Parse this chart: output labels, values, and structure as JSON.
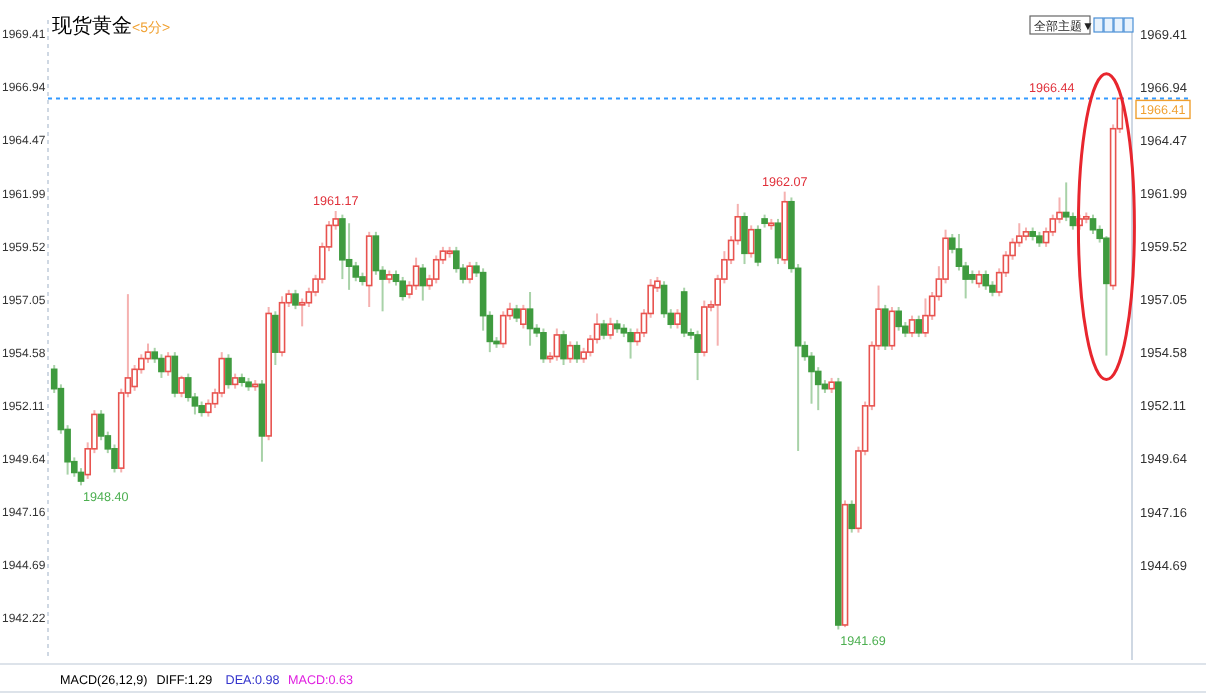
{
  "chart_data": {
    "type": "candlestick",
    "title": "现货黄金",
    "subtitle": "<5分>",
    "categories": [
      null,
      null,
      null,
      null,
      null,
      null,
      null,
      null,
      null,
      null,
      null,
      null,
      null,
      null,
      null,
      null,
      null,
      null,
      null,
      null,
      null,
      null,
      null,
      null,
      null,
      null,
      null,
      null,
      null,
      null,
      null,
      null,
      null,
      null,
      null,
      null,
      null,
      null,
      null,
      null,
      null,
      null,
      null,
      null,
      null,
      null,
      null,
      null,
      null,
      null,
      null,
      null,
      null,
      null,
      null,
      null,
      null,
      null,
      null,
      null,
      null,
      null,
      null,
      null,
      null,
      null,
      null,
      null,
      null,
      null,
      null,
      null,
      null,
      null,
      null,
      null,
      null,
      null,
      null,
      null,
      null,
      null,
      null,
      null,
      null,
      null,
      null,
      null,
      null,
      null,
      null,
      null,
      null,
      null,
      null,
      null,
      null,
      null,
      null,
      null,
      null,
      null,
      null,
      null,
      null,
      null,
      null,
      null,
      null,
      null,
      null,
      null,
      null,
      null,
      null,
      null,
      null,
      null,
      null,
      null,
      null,
      null,
      null,
      null,
      null,
      null,
      null,
      null,
      null,
      null,
      null,
      null,
      null,
      null,
      null,
      null,
      null,
      null,
      null,
      null,
      null,
      null,
      null,
      null,
      null,
      null,
      null,
      null,
      null,
      null,
      null,
      null,
      null,
      null,
      null,
      null,
      null,
      null,
      null,
      null
    ],
    "ohlc": [
      [
        1953.8,
        1954.0,
        1952.7,
        1952.9
      ],
      [
        1952.9,
        1953.1,
        1950.8,
        1951.0
      ],
      [
        1951.0,
        1951.2,
        1948.9,
        1949.5
      ],
      [
        1949.5,
        1949.7,
        1948.8,
        1949.0
      ],
      [
        1949.0,
        1949.2,
        1948.4,
        1948.6
      ],
      [
        1948.9,
        1950.4,
        1948.7,
        1950.1
      ],
      [
        1950.1,
        1951.9,
        1949.9,
        1951.7
      ],
      [
        1951.7,
        1951.9,
        1950.5,
        1950.7
      ],
      [
        1950.7,
        1950.9,
        1949.9,
        1950.1
      ],
      [
        1950.1,
        1950.3,
        1949.0,
        1949.2
      ],
      [
        1949.2,
        1952.9,
        1949.0,
        1952.7
      ],
      [
        1952.7,
        1957.3,
        1952.5,
        1953.4
      ],
      [
        1953.0,
        1954.0,
        1952.8,
        1953.8
      ],
      [
        1953.8,
        1954.5,
        1953.6,
        1954.3
      ],
      [
        1954.3,
        1955.0,
        1954.1,
        1954.6
      ],
      [
        1954.6,
        1954.8,
        1954.1,
        1954.3
      ],
      [
        1954.3,
        1954.5,
        1953.4,
        1953.7
      ],
      [
        1953.7,
        1954.6,
        1953.5,
        1954.4
      ],
      [
        1954.4,
        1954.6,
        1952.5,
        1952.7
      ],
      [
        1952.7,
        1953.5,
        1952.5,
        1953.4
      ],
      [
        1953.4,
        1953.6,
        1952.3,
        1952.5
      ],
      [
        1952.5,
        1952.7,
        1951.7,
        1952.1
      ],
      [
        1952.1,
        1952.3,
        1951.6,
        1951.8
      ],
      [
        1951.8,
        1952.4,
        1951.6,
        1952.2
      ],
      [
        1952.2,
        1952.9,
        1952.0,
        1952.7
      ],
      [
        1952.7,
        1954.6,
        1952.5,
        1954.3
      ],
      [
        1954.3,
        1954.5,
        1952.9,
        1953.1
      ],
      [
        1953.1,
        1953.6,
        1952.9,
        1953.4
      ],
      [
        1953.4,
        1953.6,
        1953.0,
        1953.2
      ],
      [
        1953.2,
        1953.4,
        1952.8,
        1953.0
      ],
      [
        1953.0,
        1953.3,
        1952.8,
        1953.1
      ],
      [
        1953.1,
        1953.3,
        1949.5,
        1950.7
      ],
      [
        1950.7,
        1956.7,
        1950.5,
        1956.4
      ],
      [
        1956.3,
        1956.5,
        1954.0,
        1954.6
      ],
      [
        1954.6,
        1957.2,
        1954.4,
        1956.9
      ],
      [
        1956.9,
        1957.5,
        1956.7,
        1957.3
      ],
      [
        1957.3,
        1957.5,
        1956.6,
        1956.8
      ],
      [
        1956.8,
        1957.1,
        1955.8,
        1956.9
      ],
      [
        1956.9,
        1957.6,
        1956.7,
        1957.4
      ],
      [
        1957.4,
        1958.2,
        1957.2,
        1958.0
      ],
      [
        1958.0,
        1959.7,
        1957.8,
        1959.5
      ],
      [
        1959.5,
        1960.7,
        1959.3,
        1960.5
      ],
      [
        1960.5,
        1961.17,
        1960.3,
        1960.8
      ],
      [
        1960.8,
        1961.0,
        1958.0,
        1958.9
      ],
      [
        1958.9,
        1960.6,
        1957.5,
        1958.6
      ],
      [
        1958.6,
        1958.8,
        1957.9,
        1958.1
      ],
      [
        1958.1,
        1958.3,
        1957.7,
        1957.9
      ],
      [
        1957.7,
        1960.2,
        1956.7,
        1960.0
      ],
      [
        1960.0,
        1960.2,
        1958.2,
        1958.4
      ],
      [
        1958.4,
        1958.6,
        1956.5,
        1958.0
      ],
      [
        1958.0,
        1958.4,
        1957.8,
        1958.2
      ],
      [
        1958.2,
        1958.4,
        1957.7,
        1957.9
      ],
      [
        1957.9,
        1958.1,
        1957.0,
        1957.2
      ],
      [
        1957.3,
        1957.9,
        1957.1,
        1957.7
      ],
      [
        1957.7,
        1959.0,
        1957.5,
        1958.6
      ],
      [
        1958.5,
        1958.7,
        1957.0,
        1957.7
      ],
      [
        1957.7,
        1958.2,
        1957.5,
        1958.0
      ],
      [
        1958.0,
        1959.1,
        1957.8,
        1958.9
      ],
      [
        1958.9,
        1959.5,
        1958.7,
        1959.3
      ],
      [
        1959.2,
        1959.5,
        1959.0,
        1959.3
      ],
      [
        1959.3,
        1959.5,
        1958.3,
        1958.5
      ],
      [
        1958.5,
        1958.7,
        1957.8,
        1958.0
      ],
      [
        1958.0,
        1958.8,
        1957.8,
        1958.6
      ],
      [
        1958.6,
        1958.8,
        1958.1,
        1958.3
      ],
      [
        1958.3,
        1958.5,
        1955.6,
        1956.3
      ],
      [
        1956.3,
        1956.5,
        1954.6,
        1955.1
      ],
      [
        1955.1,
        1955.3,
        1954.8,
        1955.0
      ],
      [
        1955.0,
        1956.5,
        1954.8,
        1956.3
      ],
      [
        1956.3,
        1956.9,
        1956.1,
        1956.6
      ],
      [
        1956.6,
        1956.8,
        1956.0,
        1956.2
      ],
      [
        1955.9,
        1956.8,
        1955.7,
        1956.6
      ],
      [
        1956.6,
        1957.4,
        1954.9,
        1955.7
      ],
      [
        1955.7,
        1955.9,
        1955.3,
        1955.5
      ],
      [
        1955.5,
        1955.7,
        1954.1,
        1954.3
      ],
      [
        1954.3,
        1954.6,
        1954.1,
        1954.4
      ],
      [
        1954.4,
        1955.7,
        1954.2,
        1955.4
      ],
      [
        1955.4,
        1955.6,
        1954.0,
        1954.3
      ],
      [
        1954.3,
        1955.1,
        1954.1,
        1954.9
      ],
      [
        1954.9,
        1955.1,
        1954.1,
        1954.3
      ],
      [
        1954.3,
        1954.8,
        1954.1,
        1954.6
      ],
      [
        1954.6,
        1955.4,
        1954.4,
        1955.2
      ],
      [
        1955.2,
        1956.4,
        1955.0,
        1955.9
      ],
      [
        1955.9,
        1956.1,
        1955.2,
        1955.4
      ],
      [
        1955.4,
        1956.2,
        1955.2,
        1955.9
      ],
      [
        1955.9,
        1956.1,
        1955.5,
        1955.7
      ],
      [
        1955.7,
        1955.9,
        1955.3,
        1955.5
      ],
      [
        1955.5,
        1955.7,
        1954.3,
        1955.1
      ],
      [
        1955.1,
        1955.7,
        1954.9,
        1955.5
      ],
      [
        1955.5,
        1956.6,
        1955.3,
        1956.4
      ],
      [
        1956.4,
        1958.0,
        1956.2,
        1957.7
      ],
      [
        1957.6,
        1958.1,
        1957.4,
        1957.9
      ],
      [
        1957.7,
        1957.9,
        1956.2,
        1956.4
      ],
      [
        1956.4,
        1956.6,
        1955.7,
        1955.9
      ],
      [
        1955.9,
        1956.6,
        1955.7,
        1956.4
      ],
      [
        1957.4,
        1957.6,
        1955.3,
        1955.5
      ],
      [
        1955.5,
        1955.7,
        1955.2,
        1955.4
      ],
      [
        1955.4,
        1955.6,
        1953.3,
        1954.6
      ],
      [
        1954.6,
        1957.0,
        1954.4,
        1956.7
      ],
      [
        1956.7,
        1957.0,
        1956.5,
        1956.8
      ],
      [
        1956.8,
        1958.2,
        1954.9,
        1958.0
      ],
      [
        1958.0,
        1959.3,
        1957.8,
        1958.9
      ],
      [
        1958.9,
        1960.0,
        1958.7,
        1959.8
      ],
      [
        1959.8,
        1961.5,
        1959.6,
        1960.9
      ],
      [
        1960.9,
        1961.1,
        1958.7,
        1959.2
      ],
      [
        1959.2,
        1960.5,
        1959.0,
        1960.3
      ],
      [
        1960.3,
        1960.5,
        1958.6,
        1958.8
      ],
      [
        1960.8,
        1961.0,
        1960.4,
        1960.6
      ],
      [
        1960.5,
        1960.8,
        1960.3,
        1960.6
      ],
      [
        1960.6,
        1960.8,
        1958.7,
        1959.0
      ],
      [
        1958.9,
        1962.07,
        1958.7,
        1961.6
      ],
      [
        1961.6,
        1961.8,
        1958.3,
        1958.5
      ],
      [
        1958.5,
        1958.7,
        1950.0,
        1954.9
      ],
      [
        1954.9,
        1955.1,
        1954.2,
        1954.4
      ],
      [
        1954.4,
        1954.6,
        1952.2,
        1953.7
      ],
      [
        1953.7,
        1953.9,
        1951.9,
        1953.1
      ],
      [
        1953.1,
        1953.3,
        1952.7,
        1952.9
      ],
      [
        1952.9,
        1953.4,
        1952.7,
        1953.2
      ],
      [
        1953.2,
        1953.4,
        1941.69,
        1941.9
      ],
      [
        1941.9,
        1947.7,
        1941.8,
        1947.5
      ],
      [
        1947.5,
        1947.7,
        1946.2,
        1946.4
      ],
      [
        1946.4,
        1950.2,
        1946.2,
        1950.0
      ],
      [
        1950.0,
        1952.3,
        1949.8,
        1952.1
      ],
      [
        1952.1,
        1955.1,
        1951.9,
        1954.9
      ],
      [
        1954.9,
        1957.7,
        1954.7,
        1956.6
      ],
      [
        1956.6,
        1956.8,
        1954.7,
        1954.9
      ],
      [
        1954.9,
        1956.7,
        1954.7,
        1956.5
      ],
      [
        1956.5,
        1956.7,
        1955.6,
        1955.8
      ],
      [
        1955.8,
        1956.0,
        1955.3,
        1955.5
      ],
      [
        1955.5,
        1956.3,
        1955.3,
        1956.1
      ],
      [
        1956.1,
        1956.3,
        1955.3,
        1955.5
      ],
      [
        1955.5,
        1957.1,
        1955.3,
        1956.3
      ],
      [
        1956.3,
        1957.4,
        1956.1,
        1957.2
      ],
      [
        1957.2,
        1958.6,
        1957.0,
        1958.0
      ],
      [
        1958.0,
        1960.3,
        1957.8,
        1959.9
      ],
      [
        1959.9,
        1960.1,
        1959.2,
        1959.4
      ],
      [
        1959.4,
        1960.1,
        1958.4,
        1958.6
      ],
      [
        1958.6,
        1958.8,
        1957.1,
        1958.0
      ],
      [
        1958.2,
        1958.4,
        1957.8,
        1958.0
      ],
      [
        1957.8,
        1958.4,
        1957.6,
        1958.2
      ],
      [
        1958.2,
        1958.4,
        1957.5,
        1957.7
      ],
      [
        1957.7,
        1957.9,
        1957.2,
        1957.4
      ],
      [
        1957.4,
        1958.5,
        1957.2,
        1958.3
      ],
      [
        1958.3,
        1959.3,
        1958.1,
        1959.1
      ],
      [
        1959.1,
        1959.9,
        1958.9,
        1959.7
      ],
      [
        1959.7,
        1960.6,
        1959.5,
        1960.0
      ],
      [
        1960.0,
        1960.4,
        1959.8,
        1960.2
      ],
      [
        1960.2,
        1960.4,
        1959.8,
        1960.0
      ],
      [
        1960.0,
        1960.2,
        1959.5,
        1959.7
      ],
      [
        1959.7,
        1960.4,
        1959.5,
        1960.2
      ],
      [
        1960.2,
        1961.0,
        1960.0,
        1960.8
      ],
      [
        1960.8,
        1961.8,
        1960.6,
        1961.1
      ],
      [
        1961.1,
        1962.5,
        1960.7,
        1960.9
      ],
      [
        1960.9,
        1961.1,
        1960.3,
        1960.5
      ],
      [
        1960.5,
        1961.0,
        1960.3,
        1960.8
      ],
      [
        1960.8,
        1961.1,
        1960.6,
        1960.9
      ],
      [
        1960.8,
        1961.0,
        1960.1,
        1960.3
      ],
      [
        1960.3,
        1960.5,
        1959.7,
        1959.9
      ],
      [
        1959.9,
        1960.0,
        1954.44,
        1957.8
      ],
      [
        1957.7,
        1965.2,
        1957.5,
        1965.0
      ],
      [
        1965.0,
        1966.44,
        1964.8,
        1966.41
      ]
    ],
    "colors": [
      "#3f9b3f",
      "#3f9b3f",
      "#3f9b3f",
      "#3f9b3f",
      "#3f9b3f",
      "#e8534f",
      "#e8534f",
      "#3f9b3f",
      "#3f9b3f",
      "#3f9b3f",
      "#e8534f",
      "#e8534f",
      "#e8534f",
      "#e8534f",
      "#e8534f",
      "#3f9b3f",
      "#3f9b3f",
      "#e8534f",
      "#3f9b3f",
      "#e8534f",
      "#3f9b3f",
      "#3f9b3f",
      "#3f9b3f",
      "#e8534f",
      "#e8534f",
      "#e8534f",
      "#3f9b3f",
      "#e8534f",
      "#3f9b3f",
      "#3f9b3f",
      "#e8534f",
      "#3f9b3f",
      "#e8534f",
      "#3f9b3f",
      "#e8534f",
      "#e8534f",
      "#3f9b3f",
      "#e8534f",
      "#e8534f",
      "#e8534f",
      "#e8534f",
      "#e8534f",
      "#e8534f",
      "#3f9b3f",
      "#3f9b3f",
      "#3f9b3f",
      "#3f9b3f",
      "#e8534f",
      "#3f9b3f",
      "#3f9b3f",
      "#e8534f",
      "#3f9b3f",
      "#3f9b3f",
      "#e8534f",
      "#e8534f",
      "#3f9b3f",
      "#e8534f",
      "#e8534f",
      "#e8534f",
      "#e8534f",
      "#3f9b3f",
      "#3f9b3f",
      "#e8534f",
      "#3f9b3f",
      "#3f9b3f",
      "#3f9b3f",
      "#3f9b3f",
      "#e8534f",
      "#e8534f",
      "#3f9b3f",
      "#e8534f",
      "#3f9b3f",
      "#3f9b3f",
      "#3f9b3f",
      "#e8534f",
      "#e8534f",
      "#3f9b3f",
      "#e8534f",
      "#3f9b3f",
      "#e8534f",
      "#e8534f",
      "#e8534f",
      "#3f9b3f",
      "#e8534f",
      "#3f9b3f",
      "#3f9b3f",
      "#3f9b3f",
      "#e8534f",
      "#e8534f",
      "#e8534f",
      "#e8534f",
      "#3f9b3f",
      "#3f9b3f",
      "#e8534f",
      "#3f9b3f",
      "#3f9b3f",
      "#3f9b3f",
      "#e8534f",
      "#e8534f",
      "#e8534f",
      "#e8534f",
      "#e8534f",
      "#e8534f",
      "#3f9b3f",
      "#e8534f",
      "#3f9b3f",
      "#3f9b3f",
      "#e8534f",
      "#3f9b3f",
      "#e8534f",
      "#3f9b3f",
      "#3f9b3f",
      "#3f9b3f",
      "#3f9b3f",
      "#3f9b3f",
      "#3f9b3f",
      "#e8534f",
      "#3f9b3f",
      "#e8534f",
      "#3f9b3f",
      "#e8534f",
      "#e8534f",
      "#e8534f",
      "#e8534f",
      "#3f9b3f",
      "#e8534f",
      "#3f9b3f",
      "#3f9b3f",
      "#e8534f",
      "#3f9b3f",
      "#e8534f",
      "#e8534f",
      "#e8534f",
      "#e8534f",
      "#3f9b3f",
      "#3f9b3f",
      "#3f9b3f",
      "#3f9b3f",
      "#e8534f",
      "#3f9b3f",
      "#3f9b3f",
      "#e8534f",
      "#e8534f",
      "#e8534f",
      "#e8534f",
      "#e8534f",
      "#3f9b3f",
      "#3f9b3f",
      "#e8534f",
      "#e8534f",
      "#e8534f",
      "#3f9b3f",
      "#3f9b3f",
      "#e8534f",
      "#e8534f",
      "#3f9b3f",
      "#3f9b3f",
      "#3f9b3f",
      "#e8534f",
      "#e8534f"
    ],
    "ylim": [
      1940.27,
      1970.06
    ],
    "yticks": [
      1969.41,
      1966.94,
      1964.47,
      1961.99,
      1959.52,
      1957.05,
      1954.58,
      1952.11,
      1949.64,
      1947.16,
      1944.69,
      1942.22
    ],
    "y2lim": [
      1940.27,
      1970.06
    ],
    "y2ticks": [
      1969.41,
      1966.94,
      1964.47,
      1961.99,
      1959.52,
      1957.05,
      1954.58,
      1952.11,
      1949.64,
      1947.16,
      1944.69
    ],
    "grid": false,
    "ref_lines": [
      {
        "axis": "y2",
        "value": 1966.41,
        "label": "1966.41",
        "color": "#3399ff",
        "line_style": "dotted"
      }
    ],
    "annotations": [
      "1948.40",
      {
        "text": "1961.17",
        "y": 1961.17
      },
      {
        "text": "1962.07",
        "y": 1962.07
      },
      "1941.69",
      {
        "text": "1966.44",
        "y": 1966.44
      },
      "全部主题▼",
      "MACD(26,12,9)",
      "DIFF:1.29",
      "DEA:0.98",
      "MACD:0.63"
    ]
  }
}
